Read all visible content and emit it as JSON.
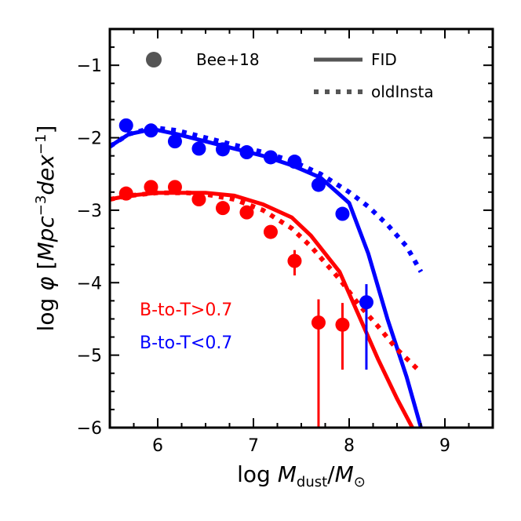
{
  "chart_data": {
    "type": "line",
    "xlabel_parts": [
      "log ",
      "M",
      "dust",
      "/",
      "M",
      "⊙"
    ],
    "ylabel_parts": [
      "log ",
      "φ",
      " [",
      "Mpc",
      "−3",
      "dex",
      "−1",
      "]"
    ],
    "xlim": [
      5.5,
      9.5
    ],
    "ylim": [
      -6.0,
      -0.5
    ],
    "xticks": [
      6,
      7,
      8,
      9
    ],
    "yticks": [
      -6,
      -5,
      -4,
      -3,
      -2,
      -1
    ],
    "xtick_labels": [
      "6",
      "7",
      "8",
      "9"
    ],
    "ytick_labels": [
      "−6",
      "−5",
      "−4",
      "−3",
      "−2",
      "−1"
    ],
    "legend": {
      "position": "top",
      "entries": [
        {
          "label": "Bee+18",
          "marker": "circle"
        },
        {
          "label": "FID",
          "linestyle": "solid"
        },
        {
          "label": "oldInsta",
          "linestyle": "dotted"
        }
      ]
    },
    "annotations": [
      {
        "text": "B-to-T>0.7",
        "color": "#ff0000"
      },
      {
        "text": "B-to-T<0.7",
        "color": "#0000ff"
      }
    ],
    "series": [
      {
        "group": "B-to-T<0.7",
        "color": "#0000ff",
        "fid": {
          "x": [
            5.5,
            5.7,
            5.95,
            6.2,
            6.5,
            6.8,
            7.1,
            7.4,
            7.7,
            8.0,
            8.2,
            8.4,
            8.6,
            8.75,
            8.9
          ],
          "y": [
            -2.12,
            -1.95,
            -1.88,
            -1.95,
            -2.05,
            -2.15,
            -2.25,
            -2.38,
            -2.55,
            -2.9,
            -3.6,
            -4.5,
            -5.3,
            -6.0,
            -6.8
          ]
        },
        "oldinsta": {
          "x": [
            5.5,
            5.7,
            5.95,
            6.2,
            6.5,
            6.8,
            7.1,
            7.4,
            7.7,
            8.0,
            8.2,
            8.4,
            8.6,
            8.75
          ],
          "y": [
            -2.12,
            -1.95,
            -1.86,
            -1.9,
            -2.0,
            -2.1,
            -2.2,
            -2.32,
            -2.5,
            -2.75,
            -2.95,
            -3.2,
            -3.5,
            -3.85
          ]
        },
        "observations": {
          "x": [
            5.67,
            5.93,
            6.18,
            6.43,
            6.68,
            6.93,
            7.18,
            7.43,
            7.68,
            7.93,
            8.18
          ],
          "y": [
            -1.83,
            -1.9,
            -2.05,
            -2.15,
            -2.16,
            -2.2,
            -2.27,
            -2.33,
            -2.65,
            -3.05,
            -4.27
          ],
          "yerr_low": [
            -1.83,
            -1.9,
            -2.05,
            -2.15,
            -2.16,
            -2.2,
            -2.27,
            -2.33,
            -2.65,
            -3.05,
            -5.2
          ],
          "yerr_high": [
            -1.83,
            -1.9,
            -2.05,
            -2.15,
            -2.16,
            -2.2,
            -2.27,
            -2.33,
            -2.65,
            -3.05,
            -4.02
          ]
        }
      },
      {
        "group": "B-to-T>0.7",
        "color": "#ff0000",
        "fid": {
          "x": [
            5.5,
            5.7,
            6.0,
            6.3,
            6.5,
            6.8,
            7.1,
            7.4,
            7.6,
            7.9,
            8.1,
            8.3,
            8.5,
            8.7,
            8.9
          ],
          "y": [
            -2.85,
            -2.8,
            -2.76,
            -2.76,
            -2.76,
            -2.8,
            -2.92,
            -3.1,
            -3.35,
            -3.85,
            -4.45,
            -5.05,
            -5.6,
            -6.1,
            -6.8
          ]
        },
        "oldinsta": {
          "x": [
            5.5,
            5.7,
            6.0,
            6.3,
            6.5,
            6.8,
            7.1,
            7.4,
            7.6,
            7.9,
            8.1,
            8.3,
            8.5,
            8.72
          ],
          "y": [
            -2.85,
            -2.8,
            -2.76,
            -2.76,
            -2.78,
            -2.85,
            -3.0,
            -3.25,
            -3.5,
            -3.95,
            -4.3,
            -4.6,
            -4.92,
            -5.2
          ]
        },
        "observations": {
          "x": [
            5.67,
            5.93,
            6.18,
            6.43,
            6.68,
            6.93,
            7.18,
            7.43,
            7.68,
            7.93
          ],
          "y": [
            -2.77,
            -2.68,
            -2.68,
            -2.85,
            -2.97,
            -3.03,
            -3.3,
            -3.7,
            -4.55,
            -4.58
          ],
          "yerr_low": [
            -2.77,
            -2.68,
            -2.68,
            -2.85,
            -2.97,
            -3.03,
            -3.3,
            -3.9,
            -6.8,
            -5.2
          ],
          "yerr_high": [
            -2.77,
            -2.68,
            -2.68,
            -2.85,
            -2.97,
            -3.03,
            -3.3,
            -3.55,
            -4.23,
            -4.28
          ]
        }
      }
    ]
  }
}
